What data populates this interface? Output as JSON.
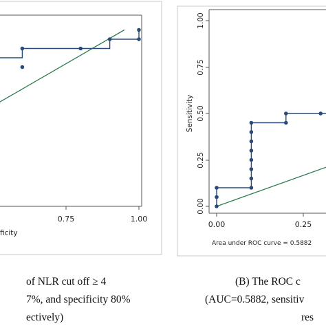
{
  "chart_data": [
    {
      "type": "line",
      "panel": "left",
      "xlabel": "ficity",
      "ylabel": "",
      "xlim": [
        0,
        1
      ],
      "ylim": [
        0,
        1
      ],
      "x_ticks_visible": [
        "0.75",
        "1.00"
      ],
      "step_points": [
        [
          0.2,
          0.75
        ],
        [
          0.4,
          0.75
        ],
        [
          0.4,
          0.8
        ],
        [
          0.6,
          0.8
        ],
        [
          0.6,
          0.85
        ],
        [
          0.8,
          0.85
        ],
        [
          0.9,
          0.85
        ],
        [
          0.9,
          0.9
        ],
        [
          1.0,
          0.9
        ],
        [
          1.0,
          0.95
        ]
      ],
      "markers": [
        [
          0.6,
          0.75
        ],
        [
          0.6,
          0.85
        ],
        [
          0.8,
          0.85
        ],
        [
          0.9,
          0.9
        ],
        [
          1.0,
          0.9
        ],
        [
          1.0,
          0.95
        ]
      ],
      "reference_line": [
        [
          0.4,
          0.45
        ],
        [
          0.95,
          0.95
        ]
      ],
      "caption": [
        "of NLR cut off ≥ 4",
        "7%, and specificity 80%",
        "ectively)"
      ],
      "colors": {
        "curve": "#2a4a78",
        "reference": "#2e7d4f"
      }
    },
    {
      "type": "line",
      "panel": "right",
      "xlabel": "",
      "ylabel": "Sensitivity",
      "xlim": [
        0,
        1
      ],
      "ylim": [
        0,
        1
      ],
      "x_ticks": [
        "0.00",
        "0.25"
      ],
      "y_ticks": [
        "0.00",
        "0.25",
        "0.50",
        "0.75",
        "1.00"
      ],
      "step_points": [
        [
          0,
          0
        ],
        [
          0,
          0.05
        ],
        [
          0,
          0.1
        ],
        [
          0.1,
          0.1
        ],
        [
          0.1,
          0.15
        ],
        [
          0.1,
          0.2
        ],
        [
          0.1,
          0.25
        ],
        [
          0.1,
          0.3
        ],
        [
          0.1,
          0.35
        ],
        [
          0.1,
          0.4
        ],
        [
          0.1,
          0.45
        ],
        [
          0.2,
          0.45
        ],
        [
          0.2,
          0.5
        ],
        [
          0.3,
          0.5
        ],
        [
          0.45,
          0.5
        ]
      ],
      "markers": [
        [
          0,
          0
        ],
        [
          0,
          0.05
        ],
        [
          0,
          0.1
        ],
        [
          0.1,
          0.1
        ],
        [
          0.1,
          0.15
        ],
        [
          0.1,
          0.2
        ],
        [
          0.1,
          0.25
        ],
        [
          0.1,
          0.3
        ],
        [
          0.1,
          0.35
        ],
        [
          0.1,
          0.4
        ],
        [
          0.1,
          0.45
        ],
        [
          0.2,
          0.45
        ],
        [
          0.2,
          0.5
        ],
        [
          0.3,
          0.5
        ]
      ],
      "reference_line": [
        [
          0,
          0
        ],
        [
          0.6,
          0.4
        ]
      ],
      "annotation": "Area under ROC curve = 0.5882",
      "caption": [
        "(B)    The ROC c",
        "(AUC=0.5882, sensitiv",
        "res"
      ],
      "colors": {
        "curve": "#2a4a78",
        "reference": "#2e7d4f"
      }
    }
  ]
}
